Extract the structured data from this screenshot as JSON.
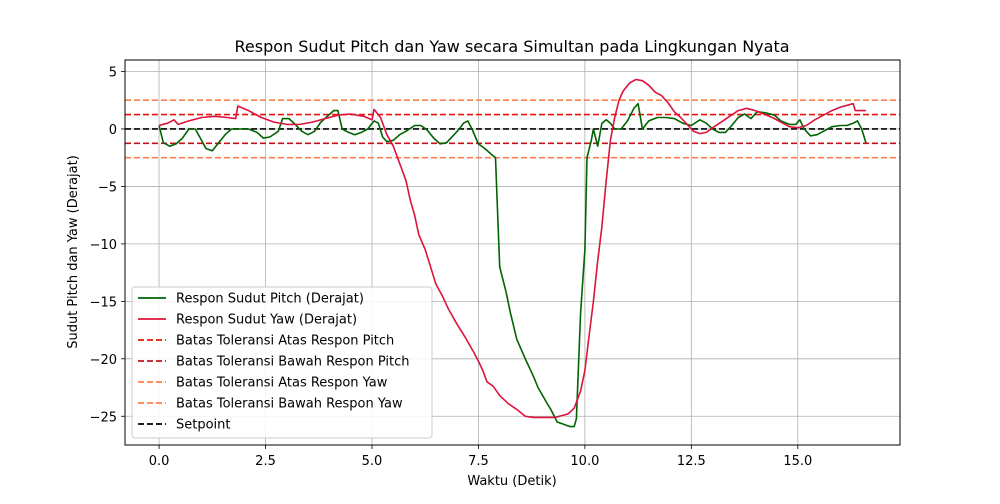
{
  "chart_data": {
    "type": "line",
    "title": "Respon Sudut Pitch dan Yaw secara Simultan pada Lingkungan Nyata",
    "xlabel": "Waktu (Detik)",
    "ylabel": "Sudut Pitch dan Yaw (Derajat)",
    "xlim": [
      -0.8,
      17.4
    ],
    "ylim": [
      -27.5,
      6.0
    ],
    "xticks": [
      0.0,
      2.5,
      5.0,
      7.5,
      10.0,
      12.5,
      15.0
    ],
    "xtick_labels": [
      "0.0",
      "2.5",
      "5.0",
      "7.5",
      "10.0",
      "12.5",
      "15.0"
    ],
    "yticks": [
      5,
      0,
      -5,
      -10,
      -15,
      -20,
      -25
    ],
    "ytick_labels": [
      "5",
      "0",
      "−5",
      "−10",
      "−15",
      "−20",
      "−25"
    ],
    "grid": true,
    "legend_position": "lower-left",
    "series": [
      {
        "name": "Respon Sudut Pitch (Derajat)",
        "color": "#006400",
        "style": "solid",
        "points": [
          [
            0,
            0.3
          ],
          [
            0.1,
            -1.2
          ],
          [
            0.25,
            -1.5
          ],
          [
            0.4,
            -1.3
          ],
          [
            0.55,
            -0.8
          ],
          [
            0.7,
            0
          ],
          [
            0.85,
            0
          ],
          [
            1.0,
            -1.0
          ],
          [
            1.1,
            -1.7
          ],
          [
            1.25,
            -1.9
          ],
          [
            1.4,
            -1.2
          ],
          [
            1.55,
            -0.5
          ],
          [
            1.7,
            0
          ],
          [
            1.9,
            0
          ],
          [
            2.1,
            0
          ],
          [
            2.3,
            -0.3
          ],
          [
            2.45,
            -0.8
          ],
          [
            2.6,
            -0.7
          ],
          [
            2.8,
            -0.2
          ],
          [
            2.9,
            0.9
          ],
          [
            3.05,
            0.9
          ],
          [
            3.2,
            0.4
          ],
          [
            3.35,
            -0.2
          ],
          [
            3.5,
            -0.5
          ],
          [
            3.65,
            -0.2
          ],
          [
            3.8,
            0.6
          ],
          [
            3.95,
            1.1
          ],
          [
            4.1,
            1.6
          ],
          [
            4.2,
            1.6
          ],
          [
            4.3,
            0
          ],
          [
            4.45,
            -0.3
          ],
          [
            4.6,
            -0.5
          ],
          [
            4.75,
            -0.3
          ],
          [
            4.9,
            0
          ],
          [
            5.05,
            0.7
          ],
          [
            5.15,
            0.5
          ],
          [
            5.25,
            -0.7
          ],
          [
            5.35,
            -1.1
          ],
          [
            5.5,
            -1.0
          ],
          [
            5.65,
            -0.5
          ],
          [
            5.8,
            -0.2
          ],
          [
            6.0,
            0.3
          ],
          [
            6.15,
            0.3
          ],
          [
            6.3,
            -0.1
          ],
          [
            6.45,
            -0.8
          ],
          [
            6.6,
            -1.3
          ],
          [
            6.75,
            -1.2
          ],
          [
            6.9,
            -0.6
          ],
          [
            7.05,
            0
          ],
          [
            7.15,
            0.5
          ],
          [
            7.25,
            0.7
          ],
          [
            7.35,
            0
          ],
          [
            7.5,
            -1.3
          ],
          [
            7.65,
            -1.7
          ],
          [
            7.8,
            -2.2
          ],
          [
            7.9,
            -2.5
          ],
          [
            8.0,
            -12.0
          ],
          [
            8.15,
            -14.2
          ],
          [
            8.25,
            -16.0
          ],
          [
            8.4,
            -18.3
          ],
          [
            8.6,
            -20.0
          ],
          [
            8.8,
            -21.6
          ],
          [
            8.9,
            -22.5
          ],
          [
            9.1,
            -23.8
          ],
          [
            9.2,
            -24.4
          ],
          [
            9.35,
            -25.5
          ],
          [
            9.5,
            -25.7
          ],
          [
            9.65,
            -25.9
          ],
          [
            9.75,
            -25.9
          ],
          [
            9.8,
            -25.2
          ],
          [
            9.9,
            -16.0
          ],
          [
            10.0,
            -10.5
          ],
          [
            10.05,
            -2.5
          ],
          [
            10.15,
            -1.0
          ],
          [
            10.2,
            0
          ],
          [
            10.3,
            -1.5
          ],
          [
            10.4,
            0.5
          ],
          [
            10.5,
            0.8
          ],
          [
            10.6,
            0.5
          ],
          [
            10.7,
            0
          ],
          [
            10.85,
            0
          ],
          [
            11.0,
            0.7
          ],
          [
            11.15,
            1.8
          ],
          [
            11.25,
            2.2
          ],
          [
            11.35,
            0
          ],
          [
            11.5,
            0.7
          ],
          [
            11.7,
            1.0
          ],
          [
            11.9,
            1.0
          ],
          [
            12.1,
            0.9
          ],
          [
            12.3,
            0.5
          ],
          [
            12.5,
            0.3
          ],
          [
            12.7,
            0.8
          ],
          [
            12.85,
            0.5
          ],
          [
            13.0,
            0
          ],
          [
            13.15,
            -0.3
          ],
          [
            13.3,
            -0.3
          ],
          [
            13.45,
            0.3
          ],
          [
            13.6,
            1.0
          ],
          [
            13.75,
            1.3
          ],
          [
            13.9,
            0.9
          ],
          [
            14.05,
            1.5
          ],
          [
            14.25,
            1.4
          ],
          [
            14.45,
            1.2
          ],
          [
            14.6,
            0.7
          ],
          [
            14.8,
            0.4
          ],
          [
            14.95,
            0.4
          ],
          [
            15.05,
            0.8
          ],
          [
            15.15,
            0
          ],
          [
            15.3,
            -0.6
          ],
          [
            15.45,
            -0.5
          ],
          [
            15.6,
            -0.2
          ],
          [
            15.8,
            0.2
          ],
          [
            16.0,
            0.3
          ],
          [
            16.15,
            0.3
          ],
          [
            16.3,
            0.5
          ],
          [
            16.4,
            0.7
          ],
          [
            16.5,
            0
          ],
          [
            16.6,
            -1.2
          ]
        ]
      },
      {
        "name": "Respon Sudut Yaw (Derajat)",
        "color": "#DC143C",
        "style": "solid",
        "points": [
          [
            0,
            0.3
          ],
          [
            0.2,
            0.5
          ],
          [
            0.35,
            0.8
          ],
          [
            0.45,
            0.4
          ],
          [
            0.7,
            0.7
          ],
          [
            1.0,
            1.0
          ],
          [
            1.3,
            1.1
          ],
          [
            1.6,
            1.0
          ],
          [
            1.8,
            0.9
          ],
          [
            1.85,
            2.0
          ],
          [
            2.1,
            1.6
          ],
          [
            2.4,
            1.0
          ],
          [
            2.7,
            0.6
          ],
          [
            3.0,
            0.4
          ],
          [
            3.3,
            0.4
          ],
          [
            3.6,
            0.6
          ],
          [
            3.9,
            0.9
          ],
          [
            4.2,
            1.2
          ],
          [
            4.5,
            1.3
          ],
          [
            4.8,
            1.1
          ],
          [
            5.0,
            0.8
          ],
          [
            5.05,
            1.7
          ],
          [
            5.2,
            1.0
          ],
          [
            5.35,
            -0.5
          ],
          [
            5.5,
            -1.5
          ],
          [
            5.7,
            -3.5
          ],
          [
            5.8,
            -4.5
          ],
          [
            5.9,
            -6.2
          ],
          [
            6.0,
            -7.5
          ],
          [
            6.1,
            -9.2
          ],
          [
            6.25,
            -10.5
          ],
          [
            6.35,
            -11.7
          ],
          [
            6.5,
            -13.5
          ],
          [
            6.65,
            -14.5
          ],
          [
            6.8,
            -15.7
          ],
          [
            7.0,
            -17.0
          ],
          [
            7.2,
            -18.2
          ],
          [
            7.4,
            -19.5
          ],
          [
            7.5,
            -20.2
          ],
          [
            7.6,
            -21.0
          ],
          [
            7.7,
            -22.0
          ],
          [
            7.85,
            -22.4
          ],
          [
            8.0,
            -23.2
          ],
          [
            8.2,
            -23.9
          ],
          [
            8.4,
            -24.4
          ],
          [
            8.6,
            -25.0
          ],
          [
            8.8,
            -25.1
          ],
          [
            9.0,
            -25.1
          ],
          [
            9.3,
            -25.1
          ],
          [
            9.6,
            -24.8
          ],
          [
            9.75,
            -24.3
          ],
          [
            9.9,
            -22.8
          ],
          [
            10.0,
            -21.0
          ],
          [
            10.1,
            -18.0
          ],
          [
            10.2,
            -15.0
          ],
          [
            10.3,
            -11.5
          ],
          [
            10.4,
            -8.5
          ],
          [
            10.5,
            -4.5
          ],
          [
            10.6,
            -1.0
          ],
          [
            10.7,
            1.0
          ],
          [
            10.8,
            2.5
          ],
          [
            10.9,
            3.3
          ],
          [
            11.05,
            4.0
          ],
          [
            11.2,
            4.3
          ],
          [
            11.35,
            4.2
          ],
          [
            11.5,
            3.8
          ],
          [
            11.65,
            3.2
          ],
          [
            11.8,
            2.9
          ],
          [
            11.95,
            2.3
          ],
          [
            12.1,
            1.5
          ],
          [
            12.25,
            1.0
          ],
          [
            12.4,
            0.4
          ],
          [
            12.55,
            -0.2
          ],
          [
            12.7,
            -0.4
          ],
          [
            12.85,
            -0.3
          ],
          [
            13.0,
            0.1
          ],
          [
            13.2,
            0.6
          ],
          [
            13.4,
            1.1
          ],
          [
            13.6,
            1.6
          ],
          [
            13.8,
            1.8
          ],
          [
            14.0,
            1.6
          ],
          [
            14.2,
            1.3
          ],
          [
            14.4,
            1.0
          ],
          [
            14.6,
            0.6
          ],
          [
            14.8,
            0.2
          ],
          [
            15.0,
            0.1
          ],
          [
            15.2,
            0.3
          ],
          [
            15.4,
            0.8
          ],
          [
            15.6,
            1.2
          ],
          [
            15.8,
            1.6
          ],
          [
            16.0,
            1.9
          ],
          [
            16.2,
            2.1
          ],
          [
            16.3,
            2.2
          ],
          [
            16.35,
            1.6
          ],
          [
            16.6,
            1.6
          ]
        ]
      },
      {
        "name": "Batas Toleransi Atas Respon Pitch",
        "color": "#E8150A",
        "style": "dashed",
        "constant": 1.25
      },
      {
        "name": "Batas Toleransi Bawah Respon Pitch",
        "color": "#C8101A",
        "style": "dashed",
        "constant": -1.25
      },
      {
        "name": "Batas Toleransi Atas Respon Yaw",
        "color": "#FF7F50",
        "style": "dashed",
        "constant": 2.5
      },
      {
        "name": "Batas Toleransi Bawah Respon Yaw",
        "color": "#FF7F50",
        "style": "dashed",
        "constant": -2.5
      },
      {
        "name": "Setpoint",
        "color": "#000000",
        "style": "dashed",
        "constant": 0
      }
    ]
  }
}
